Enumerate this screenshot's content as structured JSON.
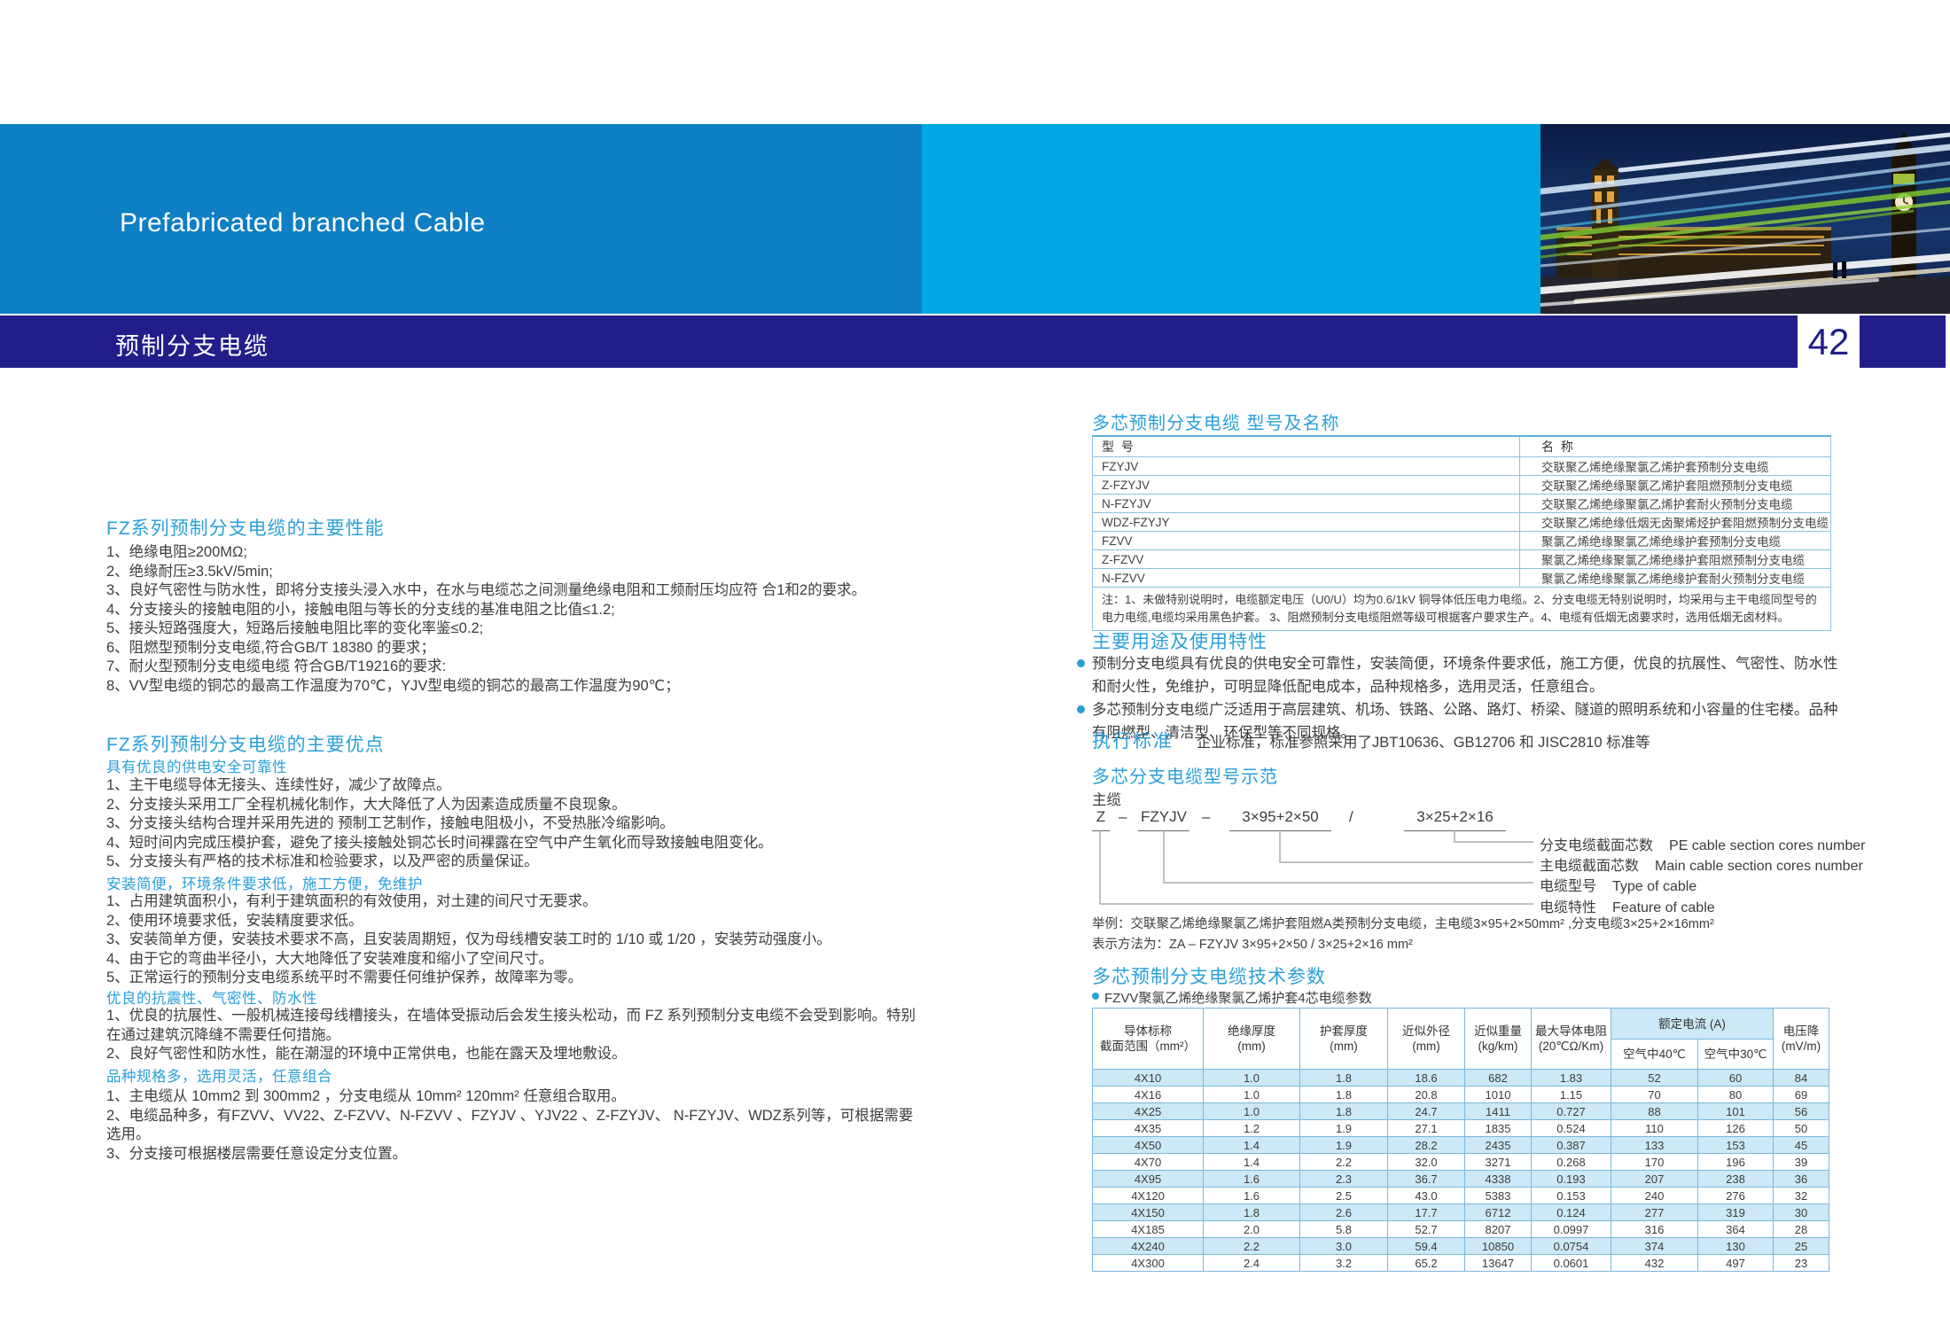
{
  "header": {
    "title_en": "Prefabricated branched Cable",
    "title_zh": "预制分支电缆",
    "page_number": "42",
    "colors": {
      "band_dark": "#0e7fc4",
      "band_cyan": "#00a7e2",
      "navy": "#221e89",
      "heading_blue": "#2b9fd9"
    }
  },
  "left": {
    "sec1_heading": "FZ系列预制分支电缆的主要性能",
    "sec1_items": [
      "1、绝缘电阻≥200MΩ;",
      "2、绝缘耐压≥3.5kV/5min;",
      "3、良好气密性与防水性，即将分支接头浸入水中，在水与电缆芯之间测量绝缘电阻和工频耐压均应符 合1和2的要求。",
      "4、分支接头的接触电阻的小，接触电阻与等长的分支线的基准电阻之比值≤1.2;",
      "5、接头短路强度大，短路后接触电阻比率的变化率鉴≤0.2;",
      "6、阻燃型预制分支电缆,符合GB/T 18380 的要求；",
      "7、耐火型预制分支电缆电缆 符合GB/T19216的要求:",
      "8、VV型电缆的铜芯的最高工作温度为70℃，YJV型电缆的铜芯的最高工作温度为90℃；"
    ],
    "sec2_heading": "FZ系列预制分支电缆的主要优点",
    "sub1_heading": "具有优良的供电安全可靠性",
    "sub1_items": [
      "1、主干电缆导体无接头、连续性好，减少了故障点。",
      "2、分支接头采用工厂全程机械化制作，大大降低了人为因素造成质量不良现象。",
      "3、分支接头结构合理并采用先进的 预制工艺制作，接触电阻极小，不受热胀冷缩影响。",
      "4、短时间内完成压模护套，避免了接头接触处铜芯长时间裸露在空气中产生氧化而导致接触电阻变化。",
      "5、分支接头有严格的技术标准和检验要求，以及严密的质量保证。"
    ],
    "sub2_heading": "安装简便，环境条件要求低，施工方便，免维护",
    "sub2_items": [
      "1、占用建筑面积小，有利于建筑面积的有效使用，对土建的间尺寸无要求。",
      "2、使用环境要求低，安装精度要求低。",
      "3、安装简单方便，安装技术要求不高，且安装周期短，仅为母线槽安装工时的 1/10 或 1/20 ，安装劳动强度小。",
      "4、由于它的弯曲半径小，大大地降低了安装难度和缩小了空间尺寸。",
      "5、正常运行的预制分支电缆系统平时不需要任何维护保养，故障率为零。"
    ],
    "sub3_heading": "优良的抗震性、气密性、防水性",
    "sub3_items": [
      "1、优良的抗展性、一般机械连接母线槽接头，在墙体受振动后会发生接头松动，而 FZ 系列预制分支电缆不会受到影响。特别在通过建筑沉降缝不需要任何措施。",
      "2、良好气密性和防水性，能在潮湿的环境中正常供电，也能在露天及埋地敷设。"
    ],
    "sub4_heading": "品种规格多，选用灵活，任意组合",
    "sub4_items": [
      "1、主电缆从 10mm2 到 300mm2 ，分支电缆从 10mm²  120mm² 任意组合取用。",
      "2、电缆品种多，有FZVV、VV22、Z-FZVV、N-FZVV 、FZYJV 、YJV22 、Z-FZYJV、 N-FZYJV、WDZ系列等，可根据需要选用。",
      "3、分支接可根据楼层需要任意设定分支位置。"
    ]
  },
  "right": {
    "model_table": {
      "title": "多芯预制分支电缆 型号及名称",
      "header_model": "型 号",
      "header_name": "名 称",
      "rows": [
        [
          "FZYJV",
          "交联聚乙烯绝缘聚氯乙烯护套预制分支电缆"
        ],
        [
          "Z-FZYJV",
          "交联聚乙烯绝缘聚氯乙烯护套阻燃预制分支电缆"
        ],
        [
          "N-FZYJV",
          "交联聚乙烯绝缘聚氯乙烯护套耐火预制分支电缆"
        ],
        [
          "WDZ-FZYJY",
          "交联聚乙烯绝缘低烟无卤聚烯烃护套阻燃预制分支电缆"
        ],
        [
          "FZVV",
          "聚氯乙烯绝缘聚氯乙烯绝缘护套预制分支电缆"
        ],
        [
          "Z-FZVV",
          "聚氯乙烯绝缘聚氯乙烯绝缘护套阻燃预制分支电缆"
        ],
        [
          "N-FZVV",
          "聚氯乙烯绝缘聚氯乙烯绝缘护套耐火预制分支电缆"
        ]
      ],
      "note": "注：1、未做特别说明时，电缆额定电压（U0/U）均为0.6/1kV 铜导体低压电力电缆。2、分支电缆无特别说明时，均采用与主干电缆同型号的电力电缆,电缆均采用黑色护套。 3、阻燃预制分支电缆阻燃等级可根据客户要求生产。4、电缆有低烟无卤要求时，选用低烟无卤材料。"
    },
    "usage": {
      "heading": "主要用途及使用特性",
      "bullet1": "预制分支电缆具有优良的供电安全可靠性，安装简便，环境条件要求低，施工方便，优良的抗展性、气密性、防水性和耐火性，免维护，可明显降低配电成本，品种规格多，选用灵活，任意组合。",
      "bullet2": "多芯预制分支电缆广泛适用于高层建筑、机场、铁路、公路、路灯、桥梁、隧道的照明系统和小容量的住宅楼。品种有阻燃型、清洁型、环保型等不同规格。",
      "standard_label": "执行标准",
      "standard_text": "企业标准，标准参照采用了JBT10636、GB12706 和 JISC2810 标准等"
    },
    "demo": {
      "heading": "多芯分支电缆型号示范",
      "main_cable_label": "主缆",
      "parts": [
        "Z",
        "–",
        "FZYJV",
        "–",
        "3×95+2×50",
        "/",
        "3×25+2×16"
      ],
      "callouts": [
        {
          "zh": "分支电缆截面芯数",
          "en": "PE cable section cores number"
        },
        {
          "zh": "主电缆截面芯数",
          "en": "Main cable section cores number"
        },
        {
          "zh": "电缆型号",
          "en": "Type of cable"
        },
        {
          "zh": "电缆特性",
          "en": "Feature of cable"
        }
      ],
      "example_line1": "举例：交联聚乙烯绝缘聚氯乙烯护套阻燃A类预制分支电缆，主电缆3×95+2×50mm² ,分支电缆3×25+2×16mm²",
      "example_line2": "表示方法为：ZA – FZYJV 3×95+2×50 / 3×25+2×16 mm²"
    },
    "tech": {
      "heading": "多芯预制分支电缆技术参数",
      "subtitle": "FZVV聚氯乙烯绝缘聚氯乙烯护套4芯电缆参数",
      "headers": [
        "导体标称\n截面范围（mm²）",
        "绝缘厚度\n(mm)",
        "护套厚度\n(mm)",
        "近似外径\n(mm)",
        "近似重量\n(kg/km)",
        "最大导体电阻\n(20℃Ω/Km)",
        "电压降\n(mV/m)"
      ],
      "rated_header": "额定电流 (A)",
      "rated_sub": [
        "空气中40℃",
        "空气中30℃"
      ],
      "rows": [
        [
          "4X10",
          "1.0",
          "1.8",
          "18.6",
          "682",
          "1.83",
          "52",
          "60",
          "84"
        ],
        [
          "4X16",
          "1.0",
          "1.8",
          "20.8",
          "1010",
          "1.15",
          "70",
          "80",
          "69"
        ],
        [
          "4X25",
          "1.0",
          "1.8",
          "24.7",
          "1411",
          "0.727",
          "88",
          "101",
          "56"
        ],
        [
          "4X35",
          "1.2",
          "1.9",
          "27.1",
          "1835",
          "0.524",
          "110",
          "126",
          "50"
        ],
        [
          "4X50",
          "1.4",
          "1.9",
          "28.2",
          "2435",
          "0.387",
          "133",
          "153",
          "45"
        ],
        [
          "4X70",
          "1.4",
          "2.2",
          "32.0",
          "3271",
          "0.268",
          "170",
          "196",
          "39"
        ],
        [
          "4X95",
          "1.6",
          "2.3",
          "36.7",
          "4338",
          "0.193",
          "207",
          "238",
          "36"
        ],
        [
          "4X120",
          "1.6",
          "2.5",
          "43.0",
          "5383",
          "0.153",
          "240",
          "276",
          "32"
        ],
        [
          "4X150",
          "1.8",
          "2.6",
          "17.7",
          "6712",
          "0.124",
          "277",
          "319",
          "30"
        ],
        [
          "4X185",
          "2.0",
          "5.8",
          "52.7",
          "8207",
          "0.0997",
          "316",
          "364",
          "28"
        ],
        [
          "4X240",
          "2.2",
          "3.0",
          "59.4",
          "10850",
          "0.0754",
          "374",
          "130",
          "25"
        ],
        [
          "4X300",
          "2.4",
          "3.2",
          "65.2",
          "13647",
          "0.0601",
          "432",
          "497",
          "23"
        ]
      ]
    }
  }
}
